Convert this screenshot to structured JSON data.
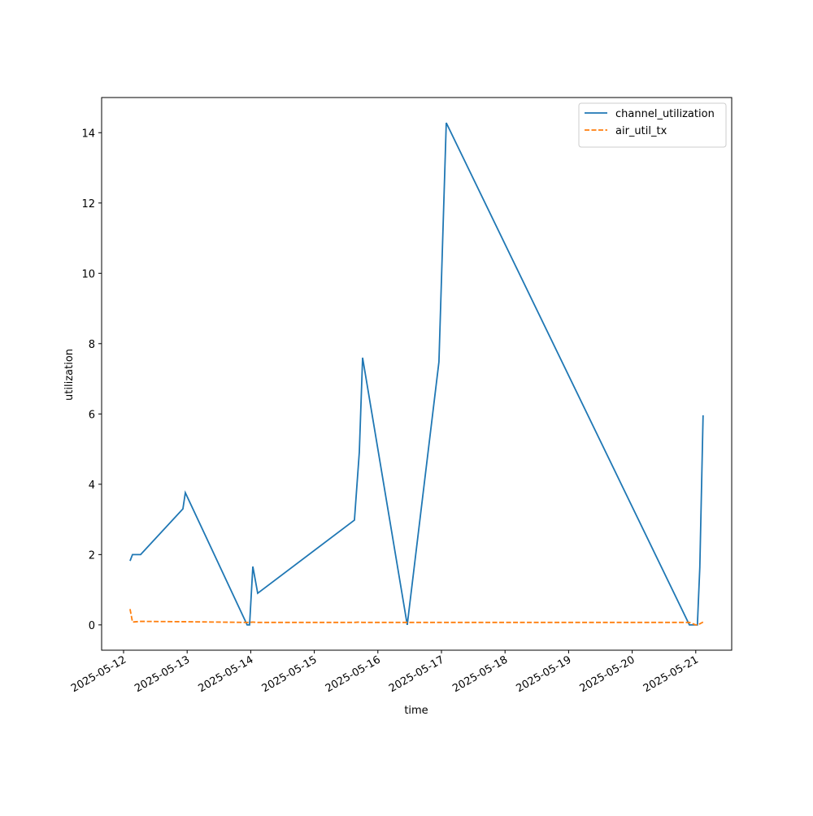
{
  "chart_data": {
    "type": "line",
    "xlabel": "time",
    "ylabel": "utilization",
    "x": [
      "2025-05-12T02:27",
      "2025-05-12T03:22",
      "2025-05-12T06:26",
      "2025-05-12T22:24",
      "2025-05-12T23:19",
      "2025-05-13T22:39",
      "2025-05-13T23:34",
      "2025-05-14T00:48",
      "2025-05-14T02:38",
      "2025-05-15T15:09",
      "2025-05-15T17:00",
      "2025-05-15T18:14",
      "2025-05-16T11:05",
      "2025-05-16T23:03",
      "2025-05-17T01:49",
      "2025-05-20T21:36",
      "2025-05-21T00:00",
      "2025-05-21T00:37",
      "2025-05-21T01:32",
      "2025-05-21T02:46"
    ],
    "series": [
      {
        "name": "channel_utilization",
        "color": "#1f77b4",
        "dashed": false,
        "values": [
          1.82,
          2.0,
          2.0,
          3.3,
          3.76,
          0,
          0,
          1.66,
          0.9,
          2.98,
          4.92,
          7.6,
          0,
          7.48,
          14.28,
          0,
          0,
          0,
          1.64,
          5.96
        ]
      },
      {
        "name": "air_util_tx",
        "color": "#ff7f0e",
        "dashed": true,
        "values": [
          0.45,
          0.08,
          0.1,
          0.09,
          0.09,
          0.07,
          0.07,
          0.08,
          0.07,
          0.07,
          0.08,
          0.07,
          0.07,
          0.07,
          0.07,
          0.07,
          0.0,
          0.0,
          0.03,
          0.08
        ]
      }
    ],
    "xlim": [
      "2025-05-11T15:43",
      "2025-05-21T13:34"
    ],
    "xticks": [
      "2025-05-12",
      "2025-05-13",
      "2025-05-14",
      "2025-05-15",
      "2025-05-16",
      "2025-05-17",
      "2025-05-18",
      "2025-05-19",
      "2025-05-20",
      "2025-05-21"
    ],
    "ylim": [
      -0.72,
      15
    ],
    "yticks": [
      0,
      2,
      4,
      6,
      8,
      10,
      12,
      14
    ],
    "legend": "upper right"
  }
}
